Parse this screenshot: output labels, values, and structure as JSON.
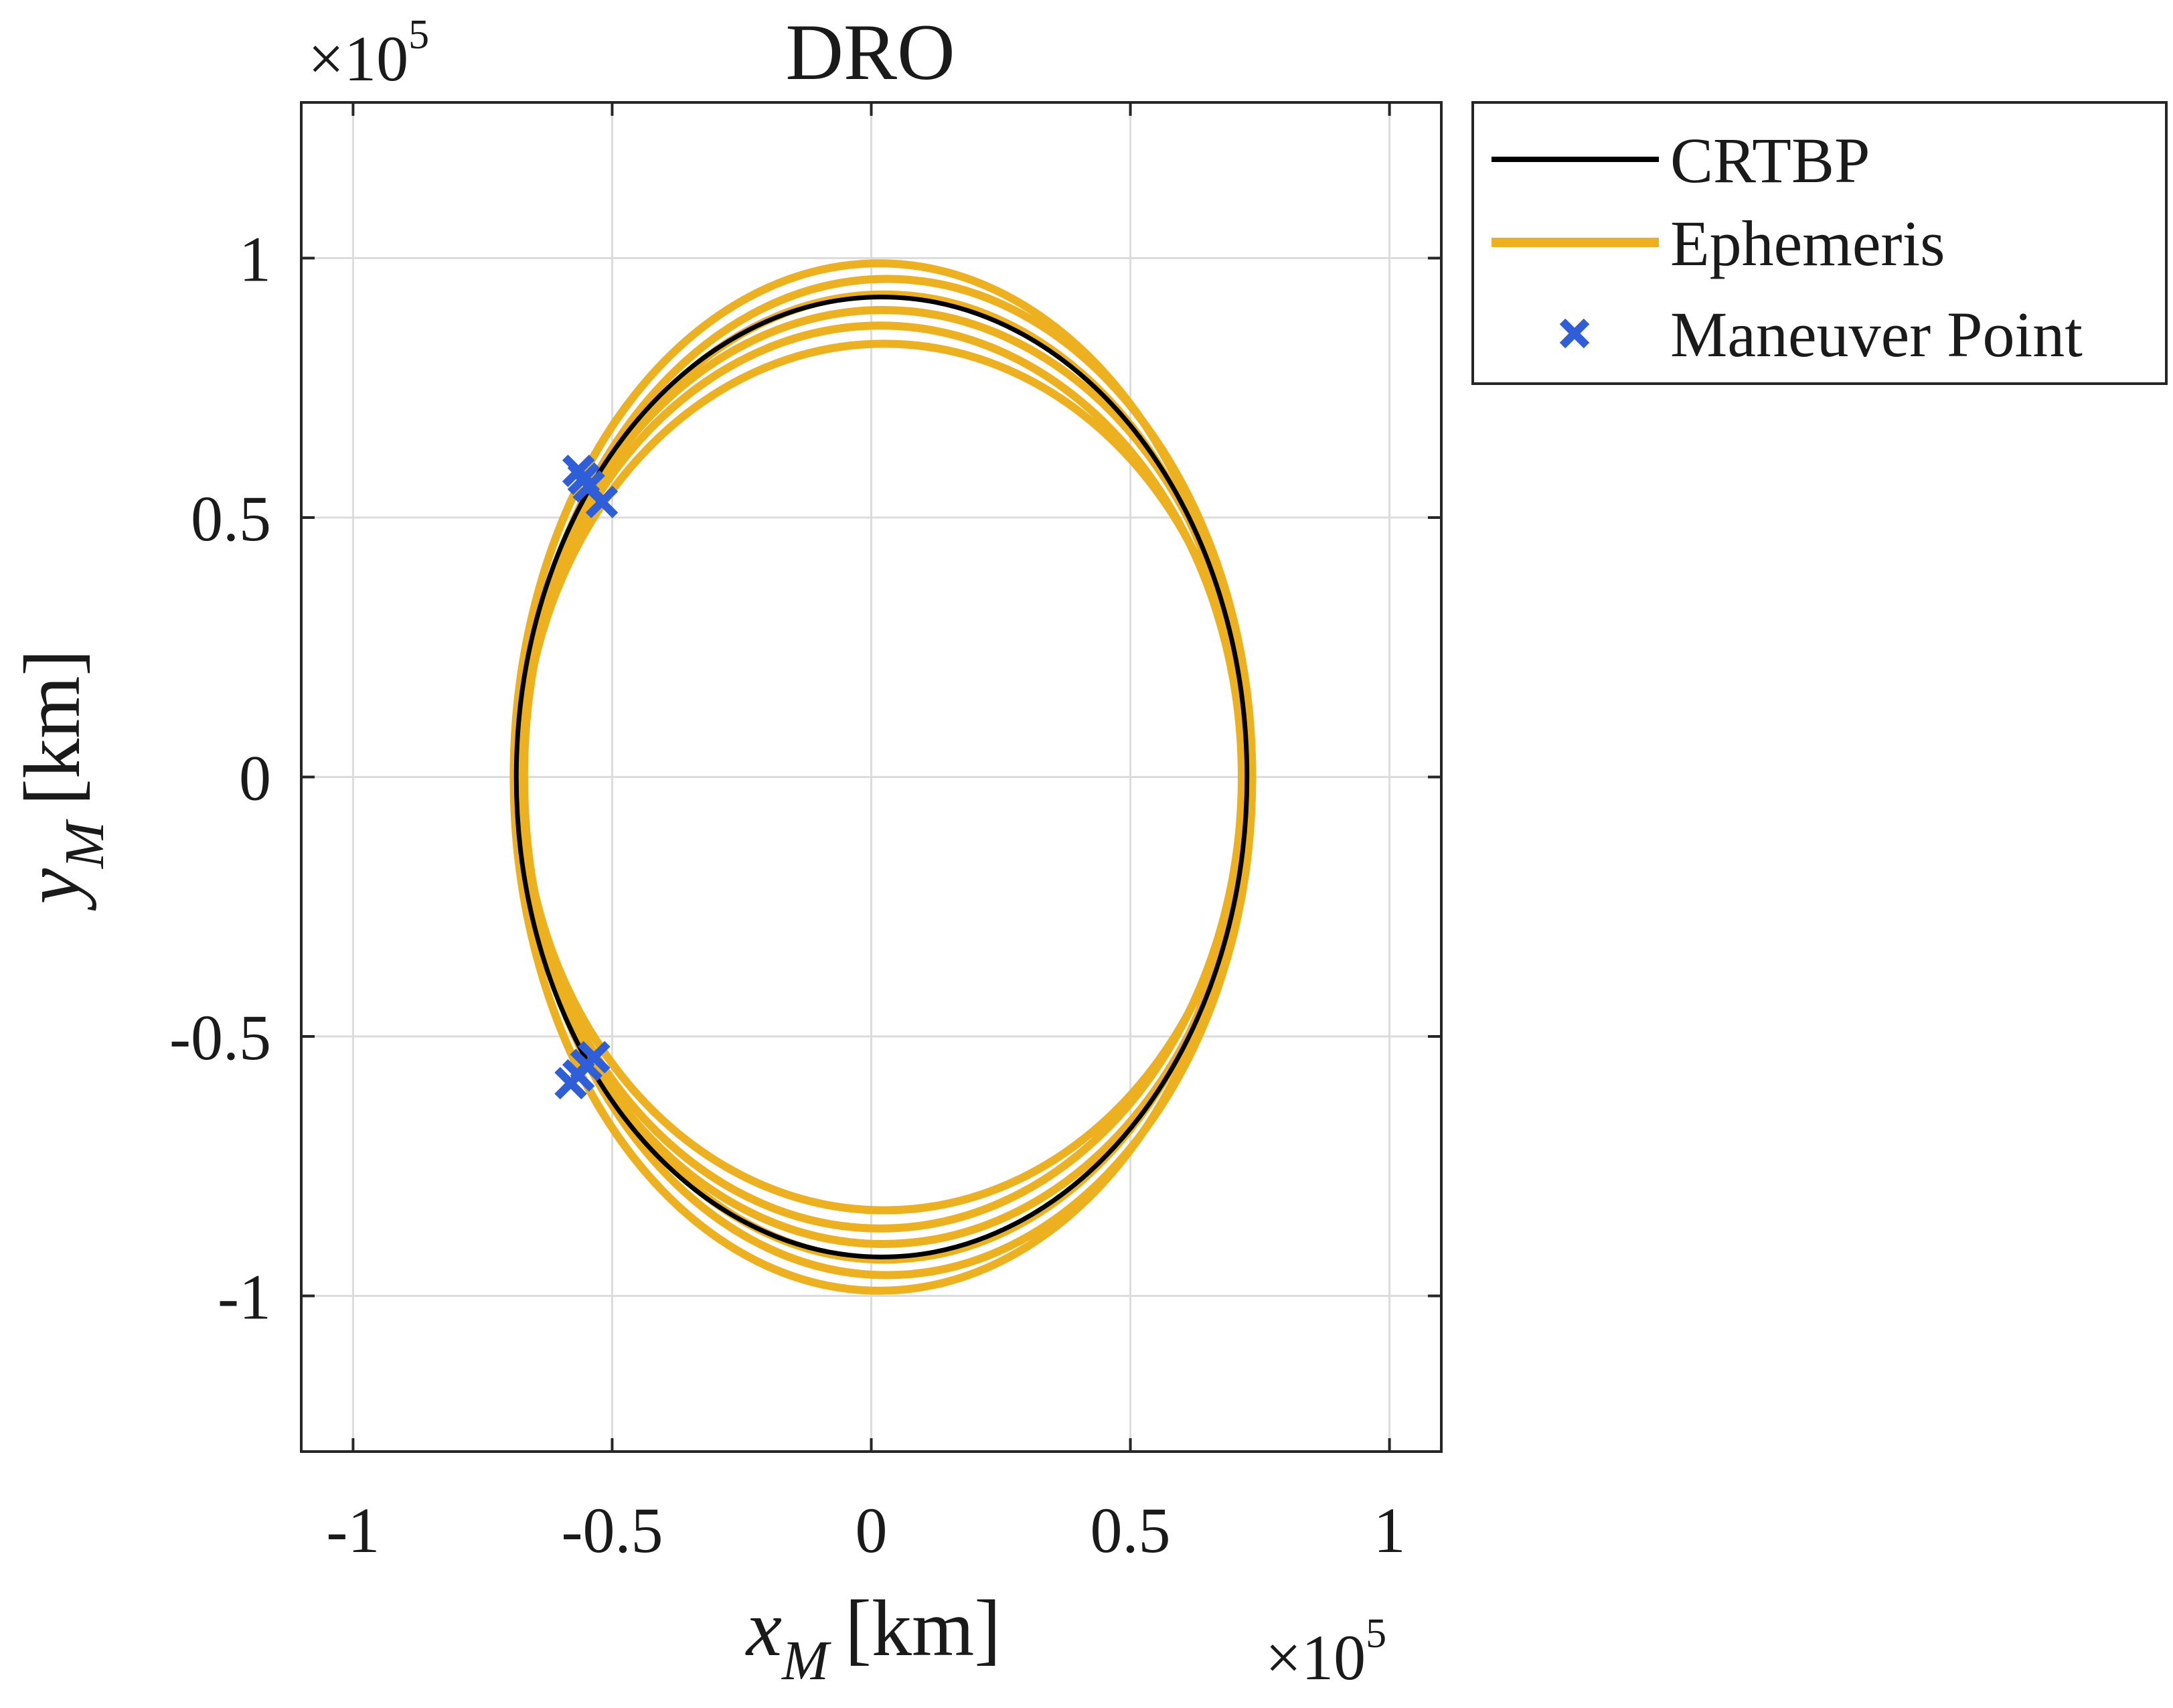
{
  "chart_data": {
    "type": "line",
    "title": "DRO",
    "xlabel": {
      "main": "x",
      "sub": "M",
      "unit": "[km]"
    },
    "ylabel": {
      "main": "y",
      "sub": "M",
      "unit": "[km]"
    },
    "x_exponent": {
      "prefix": "×10",
      "power": "5"
    },
    "y_exponent": {
      "prefix": "×10",
      "power": "5"
    },
    "xlim": [
      -1.1,
      1.1
    ],
    "ylim": [
      -1.3,
      1.3
    ],
    "x_ticks": [
      -1,
      -0.5,
      0,
      0.5,
      1
    ],
    "x_tick_labels": [
      "-1",
      "-0.5",
      "0",
      "0.5",
      "1"
    ],
    "y_ticks": [
      -1,
      -0.5,
      0,
      0.5,
      1
    ],
    "y_tick_labels": [
      "-1",
      "-0.5",
      "0",
      "0.5",
      "1"
    ],
    "grid": true,
    "legend_position": "outside-top-right",
    "legend": [
      {
        "label": "CRTBP",
        "kind": "line",
        "color": "#000000"
      },
      {
        "label": "Ephemeris",
        "kind": "line",
        "color": "#EDB120"
      },
      {
        "label": "Maneuver Point",
        "kind": "marker",
        "color": "#2F5FD8"
      }
    ],
    "colors": {
      "crtbp": "#000000",
      "ephemeris": "#EDB120",
      "maneuver": "#2F5FD8",
      "grid": "#dcdcdc",
      "axis": "#262626"
    },
    "crtbp": {
      "name": "CRTBP",
      "center": [
        -0.025,
        0.0
      ],
      "x_min": -0.685,
      "x_max": 0.725,
      "y_top": 0.925,
      "y_bottom": -0.925
    },
    "ephemeris": [
      {
        "x_min": -0.69,
        "x_max": 0.72,
        "y_top": 0.99,
        "y_bottom": -0.99
      },
      {
        "x_min": -0.675,
        "x_max": 0.735,
        "y_top": 0.96,
        "y_bottom": -0.96
      },
      {
        "x_min": -0.67,
        "x_max": 0.72,
        "y_top": 0.93,
        "y_bottom": -0.93
      },
      {
        "x_min": -0.685,
        "x_max": 0.73,
        "y_top": 0.9,
        "y_bottom": -0.9
      },
      {
        "x_min": -0.68,
        "x_max": 0.715,
        "y_top": 0.87,
        "y_bottom": -0.87
      },
      {
        "x_min": -0.675,
        "x_max": 0.725,
        "y_top": 0.835,
        "y_bottom": -0.835
      }
    ],
    "maneuver_points": [
      {
        "x": -0.565,
        "y": 0.59
      },
      {
        "x": -0.555,
        "y": 0.575
      },
      {
        "x": -0.545,
        "y": 0.56
      },
      {
        "x": -0.52,
        "y": 0.53
      },
      {
        "x": -0.58,
        "y": -0.59
      },
      {
        "x": -0.565,
        "y": -0.575
      },
      {
        "x": -0.55,
        "y": -0.555
      },
      {
        "x": -0.535,
        "y": -0.54
      }
    ]
  }
}
